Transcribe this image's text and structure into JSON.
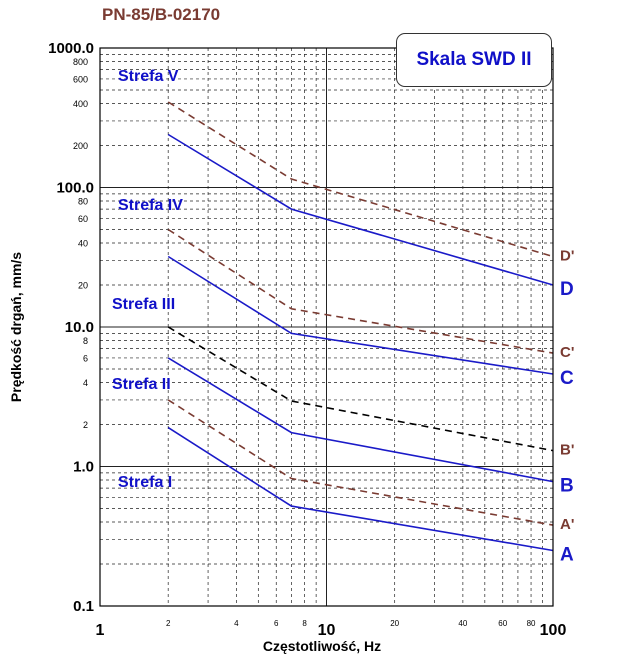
{
  "header": {
    "standard": "PN-85/B-02170"
  },
  "legend_box": {
    "label": "Skala SWD II"
  },
  "colors": {
    "solid": "#1a1ac8",
    "dashed_brown": "#7a3b32",
    "dashed_black": "#000000",
    "zone_text": "#1010c8"
  },
  "chart_data": {
    "type": "line",
    "xlabel": "Częstotliwość, Hz",
    "ylabel": "Prędkość drgań, mm/s",
    "xscale": "log",
    "yscale": "log",
    "xlim": [
      1,
      100
    ],
    "ylim": [
      0.1,
      1000
    ],
    "x_major_ticks": [
      "1",
      "10",
      "100"
    ],
    "x_minor_ticks": [
      "2",
      "4",
      "6",
      "8",
      "20",
      "40",
      "60",
      "80"
    ],
    "y_major_ticks": [
      "0.1",
      "1.0",
      "10.0",
      "100.0",
      "1000.0"
    ],
    "y_minor_ticks": [
      "2",
      "4",
      "6",
      "8",
      "20",
      "40",
      "60",
      "80",
      "200",
      "400",
      "600",
      "800"
    ],
    "grid": true,
    "zones": [
      "Strefa I",
      "Strefa II",
      "Strefa III",
      "Strefa IV",
      "Strefa V"
    ],
    "series": [
      {
        "name": "A",
        "style": "solid",
        "x": [
          2,
          7,
          100
        ],
        "y": [
          1.9,
          0.52,
          0.25
        ]
      },
      {
        "name": "A'",
        "style": "dashed",
        "x": [
          2,
          7,
          100
        ],
        "y": [
          3.0,
          0.82,
          0.38
        ]
      },
      {
        "name": "B",
        "style": "solid",
        "x": [
          2,
          7,
          100
        ],
        "y": [
          6.0,
          1.75,
          0.78
        ]
      },
      {
        "name": "B'",
        "style": "dashed",
        "x": [
          2,
          7,
          100
        ],
        "y": [
          10.0,
          2.95,
          1.3
        ]
      },
      {
        "name": "C",
        "style": "solid",
        "x": [
          2,
          7,
          100
        ],
        "y": [
          32,
          9.0,
          4.6
        ]
      },
      {
        "name": "C'",
        "style": "dashed",
        "x": [
          2,
          7,
          100
        ],
        "y": [
          50,
          13.5,
          6.5
        ]
      },
      {
        "name": "D",
        "style": "solid",
        "x": [
          2,
          7,
          100
        ],
        "y": [
          240,
          70,
          20
        ]
      },
      {
        "name": "D'",
        "style": "dashed",
        "x": [
          2,
          7,
          100
        ],
        "y": [
          410,
          115,
          32
        ]
      }
    ]
  }
}
